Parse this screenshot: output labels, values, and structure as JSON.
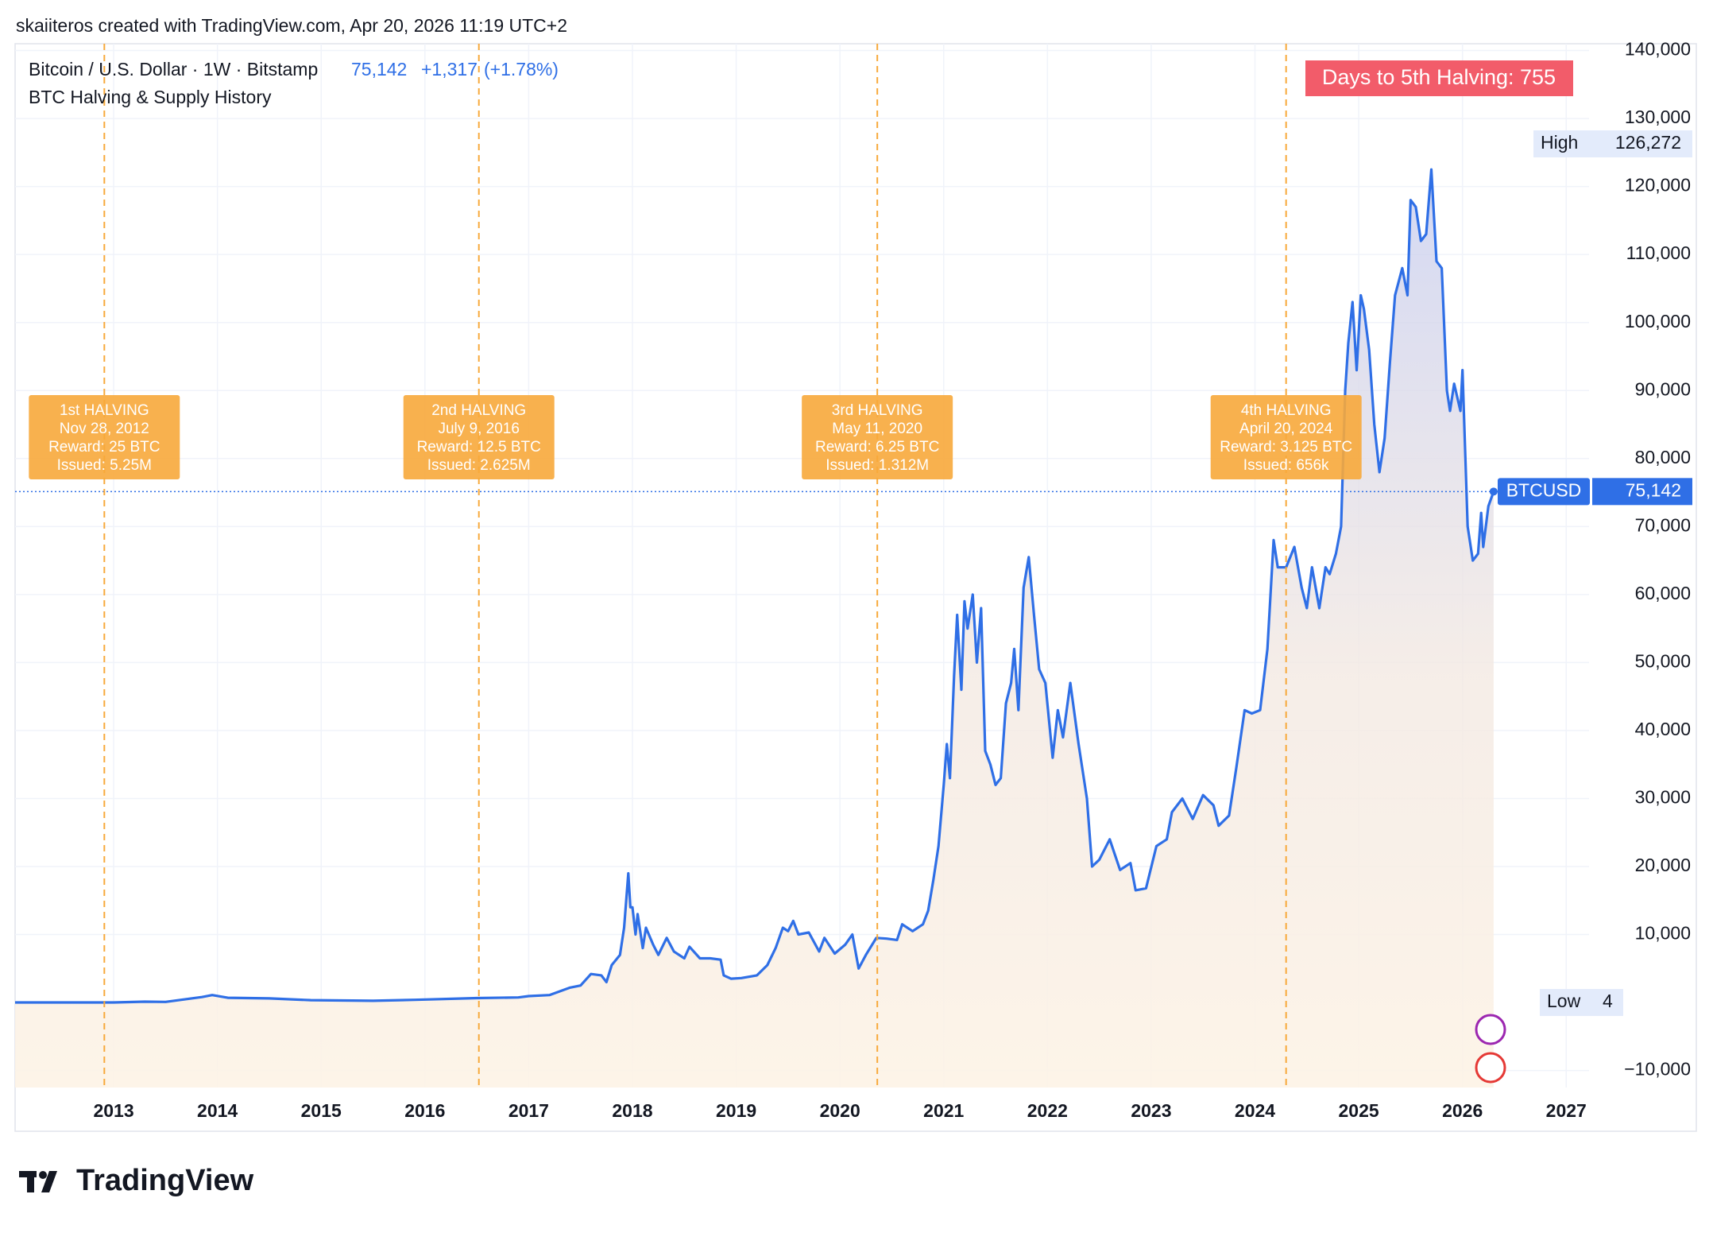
{
  "header": {
    "attribution": "skaiiteros created with TradingView.com, Apr 20, 2026 11:19 UTC+2",
    "symbol": "Bitcoin / U.S. Dollar · 1W · Bitstamp",
    "change": "+1,317",
    "change_pct": "(+1.78%)",
    "study": "BTC Halving & Supply History",
    "countdown": "Days to 5th Halving: 755"
  },
  "footer": {
    "logo": "TradingView"
  },
  "chart_data": {
    "type": "line",
    "x": [
      2012.05,
      2012.9,
      2013.0,
      2013.3,
      2013.5,
      2013.85,
      2013.95,
      2014.1,
      2014.5,
      2014.9,
      2015.5,
      2015.9,
      2016.5,
      2016.9,
      2017.0,
      2017.2,
      2017.4,
      2017.5,
      2017.6,
      2017.7,
      2017.75,
      2017.8,
      2017.88,
      2017.92,
      2017.96,
      2017.98,
      2018.0,
      2018.03,
      2018.05,
      2018.1,
      2018.13,
      2018.2,
      2018.25,
      2018.33,
      2018.4,
      2018.5,
      2018.55,
      2018.65,
      2018.75,
      2018.85,
      2018.88,
      2018.95,
      2019.05,
      2019.2,
      2019.3,
      2019.38,
      2019.45,
      2019.5,
      2019.55,
      2019.6,
      2019.7,
      2019.8,
      2019.85,
      2019.95,
      2020.05,
      2020.12,
      2020.18,
      2020.25,
      2020.35,
      2020.45,
      2020.55,
      2020.6,
      2020.7,
      2020.8,
      2020.85,
      2020.9,
      2020.95,
      2021.0,
      2021.03,
      2021.06,
      2021.1,
      2021.13,
      2021.17,
      2021.2,
      2021.23,
      2021.28,
      2021.32,
      2021.36,
      2021.4,
      2021.45,
      2021.5,
      2021.55,
      2021.6,
      2021.65,
      2021.68,
      2021.72,
      2021.77,
      2021.82,
      2021.87,
      2021.92,
      2021.98,
      2022.05,
      2022.1,
      2022.15,
      2022.22,
      2022.3,
      2022.38,
      2022.43,
      2022.5,
      2022.6,
      2022.7,
      2022.8,
      2022.85,
      2022.95,
      2023.05,
      2023.15,
      2023.2,
      2023.3,
      2023.4,
      2023.5,
      2023.6,
      2023.65,
      2023.75,
      2023.82,
      2023.9,
      2023.97,
      2024.05,
      2024.12,
      2024.18,
      2024.22,
      2024.3,
      2024.38,
      2024.45,
      2024.5,
      2024.55,
      2024.62,
      2024.68,
      2024.72,
      2024.78,
      2024.83,
      2024.87,
      2024.9,
      2024.94,
      2024.98,
      2025.02,
      2025.05,
      2025.1,
      2025.15,
      2025.2,
      2025.25,
      2025.3,
      2025.35,
      2025.42,
      2025.47,
      2025.5,
      2025.55,
      2025.6,
      2025.65,
      2025.7,
      2025.75,
      2025.8,
      2025.85,
      2025.88,
      2025.92,
      2025.98,
      2026.0,
      2026.05,
      2026.1,
      2026.15,
      2026.18,
      2026.2,
      2026.25,
      2026.3
    ],
    "series": [
      {
        "name": "BTCUSD",
        "color": "#2f6fe6",
        "values": [
          5,
          12,
          13,
          130,
          90,
          800,
          1100,
          700,
          600,
          350,
          250,
          400,
          650,
          750,
          950,
          1100,
          2200,
          2500,
          4200,
          4000,
          3000,
          5500,
          7000,
          11000,
          19000,
          14000,
          14000,
          10000,
          13000,
          8000,
          11000,
          8500,
          7000,
          9500,
          7500,
          6500,
          8200,
          6500,
          6500,
          6300,
          4000,
          3500,
          3600,
          4000,
          5500,
          8000,
          11000,
          10500,
          12000,
          10000,
          10300,
          7500,
          9500,
          7200,
          8500,
          10000,
          5000,
          7000,
          9500,
          9400,
          9200,
          11500,
          10500,
          11500,
          13500,
          18000,
          23000,
          32000,
          38000,
          33000,
          48000,
          57000,
          46000,
          59000,
          55000,
          60000,
          50000,
          58000,
          37000,
          35000,
          32000,
          33000,
          44000,
          47000,
          52000,
          43000,
          61000,
          65500,
          57000,
          49000,
          47000,
          36000,
          43000,
          39000,
          47000,
          38000,
          30000,
          20000,
          21000,
          24000,
          19500,
          20500,
          16500,
          16800,
          23000,
          24000,
          28000,
          30000,
          27000,
          30500,
          29000,
          26000,
          27500,
          34500,
          43000,
          42500,
          43000,
          52000,
          68000,
          64000,
          64000,
          67000,
          61000,
          58000,
          64000,
          58000,
          64000,
          63000,
          66000,
          70000,
          90000,
          97000,
          103000,
          93000,
          104000,
          102000,
          96000,
          85000,
          78000,
          83000,
          94000,
          104000,
          108000,
          104000,
          118000,
          117000,
          112000,
          113000,
          122500,
          109000,
          108000,
          90000,
          87000,
          91000,
          87000,
          93000,
          70000,
          65000,
          66000,
          72000,
          67000,
          73000,
          75142
        ]
      }
    ],
    "xlim": [
      2012.05,
      2027.22
    ],
    "xticks": [
      2013,
      2014,
      2015,
      2016,
      2017,
      2018,
      2019,
      2020,
      2021,
      2022,
      2023,
      2024,
      2025,
      2026,
      2027
    ],
    "ylim": [
      -12500,
      141000
    ],
    "yticks": [
      {
        "value": -10000,
        "label": "−10,000"
      },
      {
        "value": 10000,
        "label": "10,000"
      },
      {
        "value": 20000,
        "label": "20,000"
      },
      {
        "value": 30000,
        "label": "30,000"
      },
      {
        "value": 40000,
        "label": "40,000"
      },
      {
        "value": 50000,
        "label": "50,000"
      },
      {
        "value": 60000,
        "label": "60,000"
      },
      {
        "value": 70000,
        "label": "70,000"
      },
      {
        "value": 80000,
        "label": "80,000"
      },
      {
        "value": 90000,
        "label": "90,000"
      },
      {
        "value": 100000,
        "label": "100,000"
      },
      {
        "value": 110000,
        "label": "110,000"
      },
      {
        "value": 120000,
        "label": "120,000"
      },
      {
        "value": 130000,
        "label": "130,000"
      },
      {
        "value": 140000,
        "label": "140,000"
      }
    ],
    "grid": true,
    "high": {
      "text": "High",
      "value": 126272,
      "label": "126,272"
    },
    "low": {
      "text": "Low",
      "value": 4
    },
    "last": {
      "value": 75142,
      "label": "75,142"
    },
    "annotation_color": "#f7a93b",
    "annotations": [
      {
        "x": 2012.91,
        "lines": [
          "1st HALVING",
          "Nov 28, 2012",
          "Reward: 25 BTC",
          "Issued: 5.25M"
        ]
      },
      {
        "x": 2016.52,
        "lines": [
          "2nd HALVING",
          "July 9, 2016",
          "Reward: 12.5 BTC",
          "Issued: 2.625M"
        ]
      },
      {
        "x": 2020.36,
        "lines": [
          "3rd HALVING",
          "May 11, 2020",
          "Reward: 6.25 BTC",
          "Issued: 1.312M"
        ]
      },
      {
        "x": 2024.3,
        "lines": [
          "4th HALVING",
          "April 20, 2024",
          "Reward: 3.125 BTC",
          "Issued: 656k"
        ]
      }
    ]
  }
}
